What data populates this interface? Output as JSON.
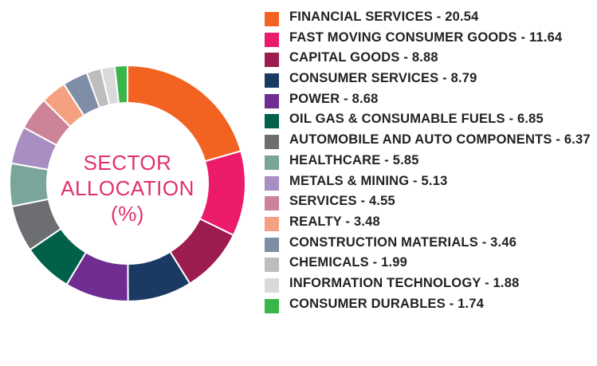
{
  "center": {
    "line1": "SECTOR",
    "line2": "ALLOCATION",
    "line3": "(%)"
  },
  "chart_data": {
    "type": "pie",
    "donut": true,
    "title": "SECTOR ALLOCATION (%)",
    "legend_position": "right",
    "slices": [
      {
        "label": "FINANCIAL SERVICES - 20.54",
        "name": "FINANCIAL SERVICES",
        "value": 20.54,
        "color": "#f26322"
      },
      {
        "label": "FAST MOVING CONSUMER GOODS - 11.64",
        "name": "FAST MOVING CONSUMER GOODS",
        "value": 11.64,
        "color": "#ec1a6a"
      },
      {
        "label": "CAPITAL GOODS - 8.88",
        "name": "CAPITAL GOODS",
        "value": 8.88,
        "color": "#9c1c4f"
      },
      {
        "label": "CONSUMER SERVICES - 8.79",
        "name": "CONSUMER SERVICES",
        "value": 8.79,
        "color": "#1b3a63"
      },
      {
        "label": "POWER - 8.68",
        "name": "POWER",
        "value": 8.68,
        "color": "#6f2c91"
      },
      {
        "label": "OIL GAS & CONSUMABLE FUELS - 6.85",
        "name": "OIL GAS & CONSUMABLE FUELS",
        "value": 6.85,
        "color": "#00604a"
      },
      {
        "label": "AUTOMOBILE AND AUTO COMPONENTS - 6.37",
        "name": "AUTOMOBILE AND AUTO COMPONENTS",
        "value": 6.37,
        "color": "#6d6e71"
      },
      {
        "label": "HEALTHCARE - 5.85",
        "name": "HEALTHCARE",
        "value": 5.85,
        "color": "#7aa59a"
      },
      {
        "label": "METALS & MINING - 5.13",
        "name": "METALS & MINING",
        "value": 5.13,
        "color": "#a98ec4"
      },
      {
        "label": "SERVICES - 4.55",
        "name": "SERVICES",
        "value": 4.55,
        "color": "#cc8398"
      },
      {
        "label": "REALTY - 3.48",
        "name": "REALTY",
        "value": 3.48,
        "color": "#f5a081"
      },
      {
        "label": "CONSTRUCTION MATERIALS - 3.46",
        "name": "CONSTRUCTION MATERIALS",
        "value": 3.46,
        "color": "#7f8ea6"
      },
      {
        "label": "CHEMICALS - 1.99",
        "name": "CHEMICALS",
        "value": 1.99,
        "color": "#bdbdbd"
      },
      {
        "label": "INFORMATION TECHNOLOGY - 1.88",
        "name": "INFORMATION TECHNOLOGY",
        "value": 1.88,
        "color": "#dadada"
      },
      {
        "label": "CONSUMER DURABLES - 1.74",
        "name": "CONSUMER DURABLES",
        "value": 1.74,
        "color": "#39b54a"
      }
    ]
  }
}
